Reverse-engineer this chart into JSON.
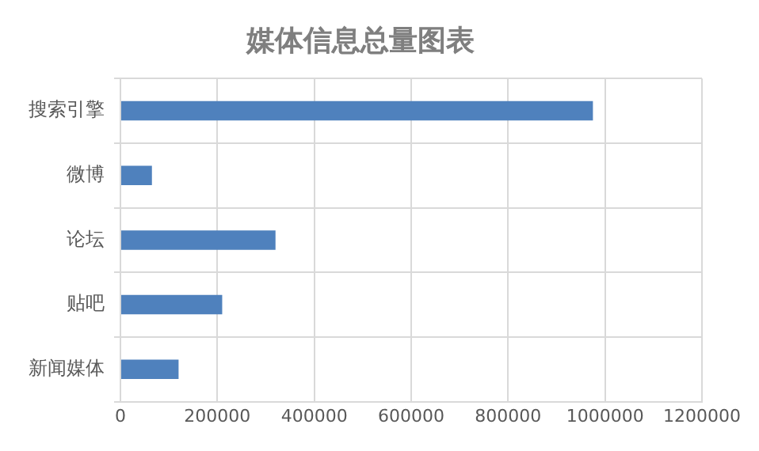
{
  "chart_data": {
    "type": "bar",
    "orientation": "horizontal",
    "title": "媒体信息总量图表",
    "categories": [
      "搜索引擎",
      "微博",
      "论坛",
      "贴吧",
      "新闻媒体"
    ],
    "values": [
      975000,
      65000,
      320000,
      210000,
      120000
    ],
    "color": "#4f81bd",
    "xlim": [
      0,
      1200000
    ],
    "xticks": [
      0,
      200000,
      400000,
      600000,
      800000,
      1000000,
      1200000
    ],
    "grid": true,
    "legend": false
  }
}
